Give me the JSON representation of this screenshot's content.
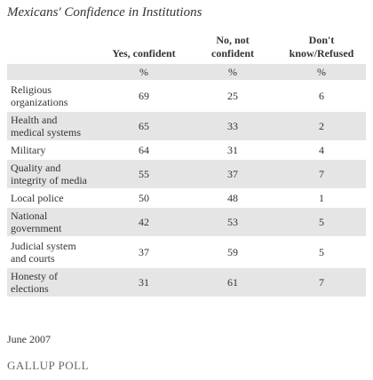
{
  "title": "Mexicans' Confidence in Institutions",
  "table": {
    "columns": [
      "Yes, confident",
      "No, not confident",
      "Don't know/Refused"
    ],
    "units": [
      "%",
      "%",
      "%"
    ],
    "rows": [
      [
        "Religious organizations",
        69,
        25,
        6
      ],
      [
        "Health and medical systems",
        65,
        33,
        2
      ],
      [
        "Military",
        64,
        31,
        4
      ],
      [
        "Quality and integrity of media",
        55,
        37,
        7
      ],
      [
        "Local police",
        50,
        48,
        1
      ],
      [
        "National government",
        42,
        53,
        5
      ],
      [
        "Judicial system and courts",
        37,
        59,
        5
      ],
      [
        "Honesty of elections",
        31,
        61,
        7
      ]
    ]
  },
  "footnote": "June 2007",
  "logo": "GALLUP POLL"
}
